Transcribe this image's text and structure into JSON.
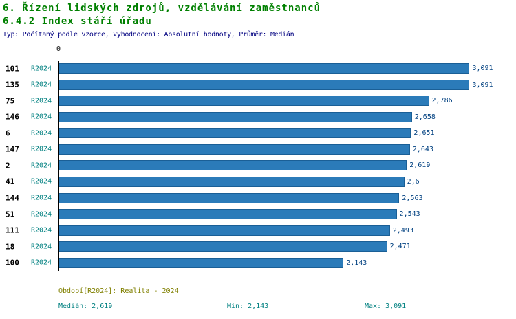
{
  "header": {
    "title_line1": "6. Řízení lidských zdrojů, vzdělávání zaměstnanců",
    "title_line2": "6.4.2 Index stáří úřadu",
    "subtitle": "Typ: Počítaný podle vzorce, Vyhodnocení: Absolutní hodnoty, Průměr: Medián"
  },
  "chart_data": {
    "type": "bar",
    "orientation": "horizontal",
    "origin_tick_label": "0",
    "xlim": [
      0,
      3.43
    ],
    "grid": false,
    "median_reference_line": 2.619,
    "series_period": "R2024",
    "rows": [
      {
        "org": "101",
        "period": "R2024",
        "value": 3.091,
        "label": "3,091"
      },
      {
        "org": "135",
        "period": "R2024",
        "value": 3.091,
        "label": "3,091"
      },
      {
        "org": "75",
        "period": "R2024",
        "value": 2.786,
        "label": "2,786"
      },
      {
        "org": "146",
        "period": "R2024",
        "value": 2.658,
        "label": "2,658"
      },
      {
        "org": "6",
        "period": "R2024",
        "value": 2.651,
        "label": "2,651"
      },
      {
        "org": "147",
        "period": "R2024",
        "value": 2.643,
        "label": "2,643"
      },
      {
        "org": "2",
        "period": "R2024",
        "value": 2.619,
        "label": "2,619"
      },
      {
        "org": "41",
        "period": "R2024",
        "value": 2.6,
        "label": "2,6"
      },
      {
        "org": "144",
        "period": "R2024",
        "value": 2.563,
        "label": "2,563"
      },
      {
        "org": "51",
        "period": "R2024",
        "value": 2.543,
        "label": "2,543"
      },
      {
        "org": "111",
        "period": "R2024",
        "value": 2.493,
        "label": "2,493"
      },
      {
        "org": "18",
        "period": "R2024",
        "value": 2.471,
        "label": "2,471"
      },
      {
        "org": "100",
        "period": "R2024",
        "value": 2.143,
        "label": "2,143"
      }
    ],
    "stats": {
      "median": 2.619,
      "min": 2.143,
      "max": 3.091
    }
  },
  "footer": {
    "period_note": "Období[R2024]: Realita - 2024",
    "median": "Medián: 2,619",
    "min": "Min: 2,143",
    "max": "Max: 3,091"
  },
  "colors": {
    "title_green": "#008000",
    "subtitle_navy": "#000080",
    "bar_fill": "#2b7bb9",
    "bar_border": "#1a5f96",
    "value_navy": "#004080",
    "period_teal": "#008080",
    "note_olive": "#808000",
    "median_line": "#92afcc",
    "axis_black": "#000000",
    "org_black": "#000000"
  }
}
